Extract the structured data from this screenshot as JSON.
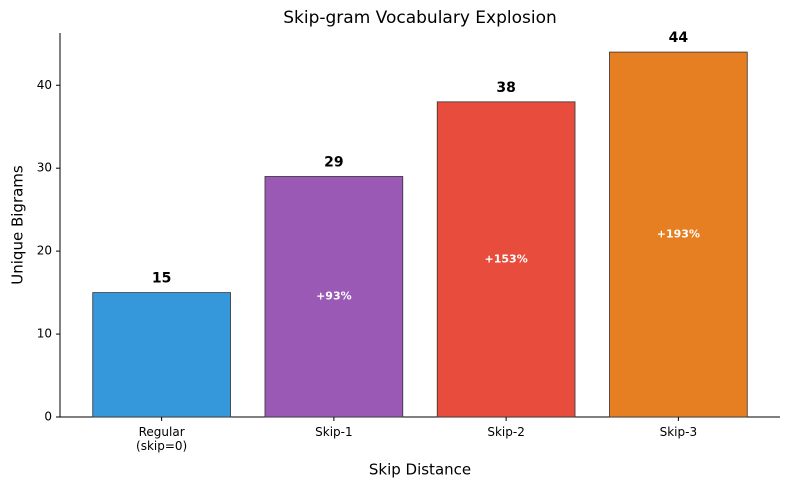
{
  "chart_data": {
    "type": "bar",
    "title": "Skip-gram Vocabulary Explosion",
    "x_label": "Skip Distance",
    "y_label": "Unique Bigrams",
    "categories": [
      "Regular\n(skip=0)",
      "Skip-1",
      "Skip-2",
      "Skip-3"
    ],
    "values": [
      15,
      29,
      38,
      44
    ],
    "colors": [
      "#3498db",
      "#9b59b6",
      "#e74c3c",
      "#e67e22"
    ],
    "increase_labels": [
      null,
      "+93%",
      "+153%",
      "+193%"
    ],
    "ylim": [
      0,
      46.3
    ],
    "yticks": [
      0,
      10,
      20,
      30,
      40
    ],
    "grid": false
  }
}
